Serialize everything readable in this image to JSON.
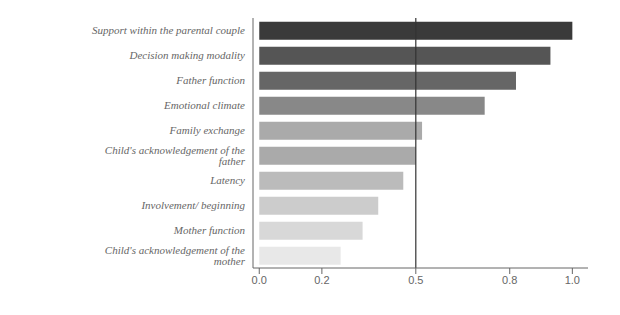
{
  "chart_data": {
    "type": "bar",
    "orientation": "horizontal",
    "categories": [
      "Support within the parental couple",
      "Decision making modality",
      "Father function",
      "Emotional climate",
      "Family exchange",
      "Child's acknowledgement of the father",
      "Latency",
      "Involvement/  beginning",
      "Mother function",
      "Child's acknowledgement  of the mother"
    ],
    "values": [
      1.0,
      0.93,
      0.82,
      0.72,
      0.52,
      0.5,
      0.46,
      0.38,
      0.33,
      0.26
    ],
    "colors": [
      "#3a3a3a",
      "#555555",
      "#666666",
      "#888888",
      "#aaaaaa",
      "#aaaaaa",
      "#bbbbbb",
      "#cccccc",
      "#d8d8d8",
      "#e8e8e8"
    ],
    "xlim": [
      -0.02,
      1.05
    ],
    "xticks": [
      {
        "value": 0.0,
        "label": "0.0"
      },
      0.2,
      0.5,
      0.8,
      {
        "value": 1.0,
        "label": "1.0"
      }
    ],
    "reference_line": 0.5,
    "grid": false
  }
}
